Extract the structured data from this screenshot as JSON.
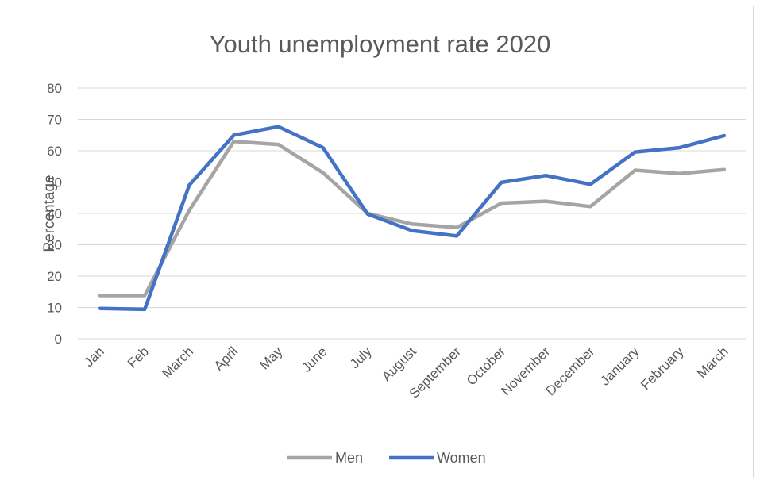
{
  "chart_data": {
    "type": "line",
    "title": "Youth unemployment rate 2020",
    "xlabel": "",
    "ylabel": "Percentage",
    "ylim": [
      0,
      80
    ],
    "yticks": [
      0,
      10,
      20,
      30,
      40,
      50,
      60,
      70,
      80
    ],
    "grid": true,
    "legend": "bottom",
    "categories": [
      "Jan",
      "Feb",
      "March",
      "April",
      "May",
      "June",
      "July",
      "August",
      "September",
      "October",
      "November",
      "December",
      "January",
      "February",
      "March"
    ],
    "series": [
      {
        "name": "Men",
        "color": "#a5a5a5",
        "values": [
          13.8,
          13.8,
          41,
          63,
          62,
          53,
          40,
          36.6,
          35.5,
          43.3,
          43.9,
          42.2,
          53.8,
          52.7,
          54
        ]
      },
      {
        "name": "Women",
        "color": "#4472c4",
        "values": [
          9.7,
          9.4,
          49,
          65,
          67.7,
          61,
          39.8,
          34.5,
          32.8,
          49.9,
          52.1,
          49.3,
          59.6,
          61,
          64.8
        ]
      }
    ]
  }
}
